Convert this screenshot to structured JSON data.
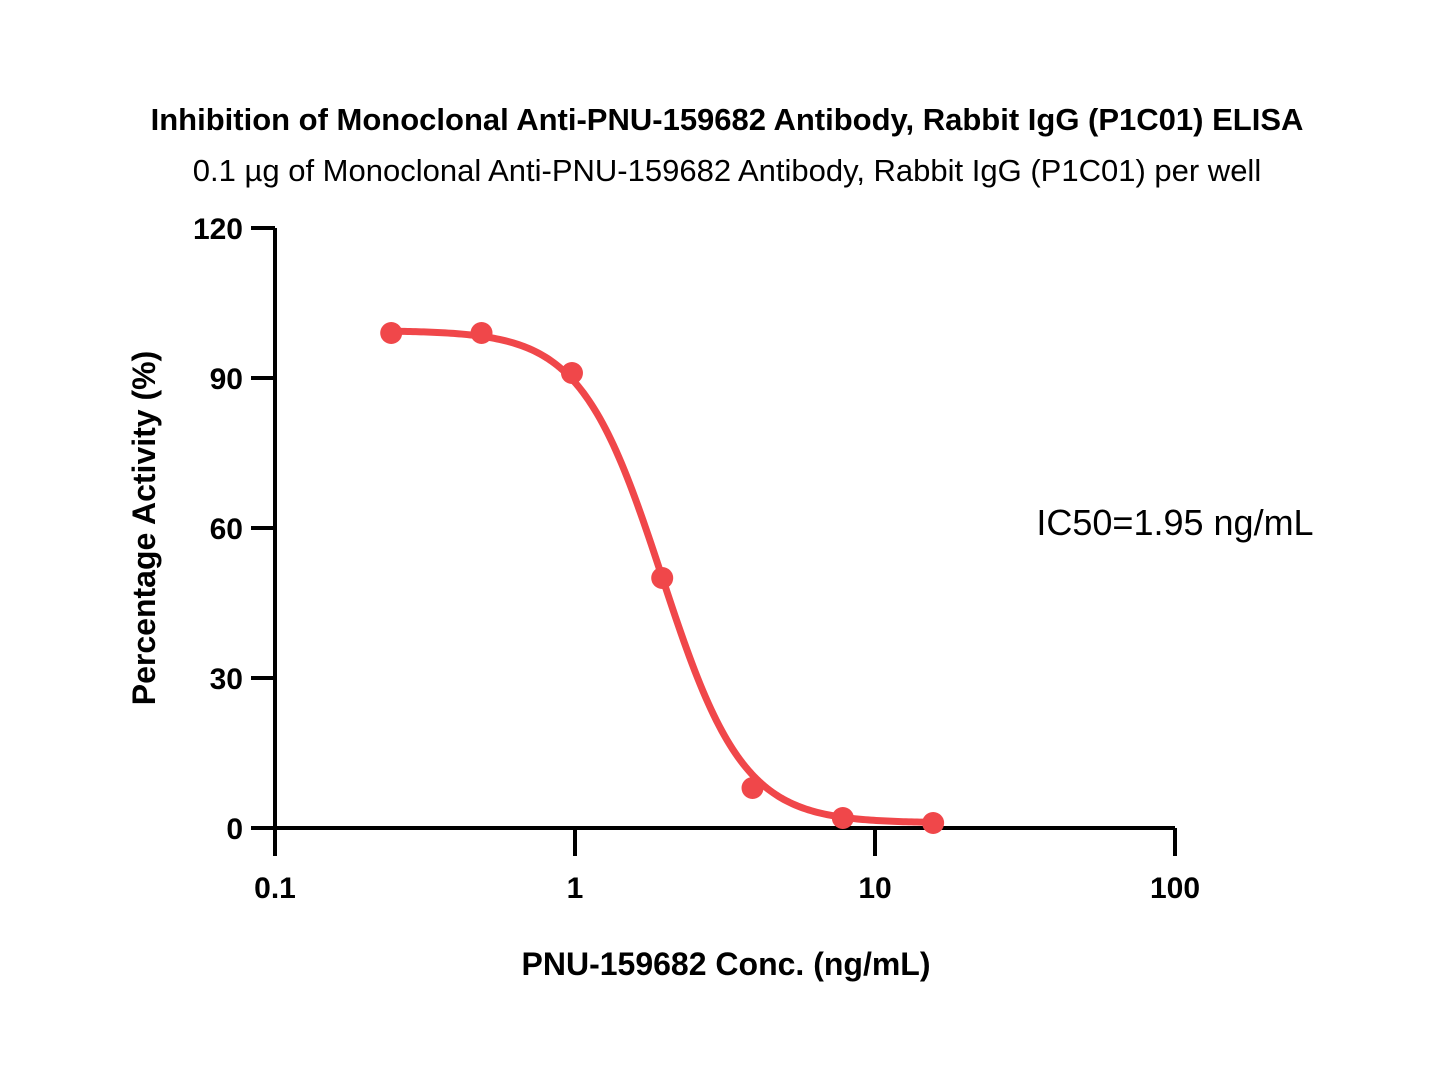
{
  "chart_data": {
    "type": "scatter",
    "title": "Inhibition of Monoclonal Anti-PNU-159682 Antibody, Rabbit IgG (P1C01) ELISA",
    "subtitle": "0.1 µg of Monoclonal Anti-PNU-159682 Antibody, Rabbit IgG (P1C01) per well",
    "xlabel": "PNU-159682 Conc. (ng/mL)",
    "ylabel": "Percentage Activity (%)",
    "x_scale": "log",
    "xlim": [
      0.1,
      100
    ],
    "ylim": [
      0,
      120
    ],
    "x_ticks": [
      0.1,
      1,
      10,
      100
    ],
    "x_tick_labels": [
      "0.1",
      "1",
      "10",
      "100"
    ],
    "y_ticks": [
      0,
      30,
      60,
      90,
      120
    ],
    "y_tick_labels": [
      "0",
      "30",
      "60",
      "90",
      "120"
    ],
    "grid": false,
    "series": [
      {
        "color": "#f0474a",
        "x": [
          0.244,
          0.488,
          0.977,
          1.953,
          3.906,
          7.813,
          15.625
        ],
        "y": [
          99,
          99,
          91,
          50,
          8,
          2,
          1
        ],
        "fit": {
          "model": "4PL",
          "top": 99.5,
          "bottom": 1,
          "ic50": 1.95,
          "hill": 3.2
        }
      }
    ],
    "annotations": [
      {
        "text": "IC50=1.95 ng/mL"
      }
    ]
  }
}
